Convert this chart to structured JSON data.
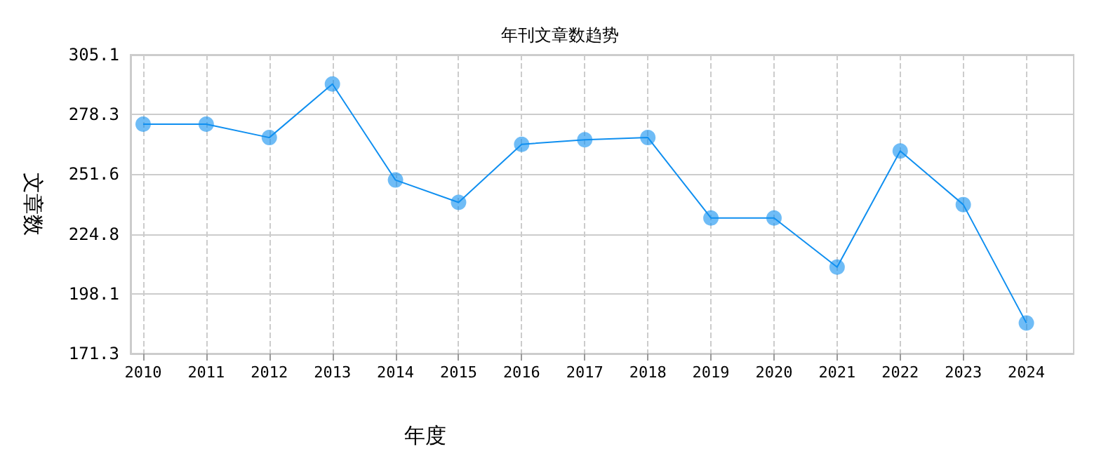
{
  "chart_data": {
    "type": "line",
    "title": "年刊文章数趋势",
    "xlabel": "年度",
    "ylabel": "文章数",
    "x": [
      2010,
      2011,
      2012,
      2013,
      2014,
      2015,
      2016,
      2017,
      2018,
      2019,
      2020,
      2021,
      2022,
      2023,
      2024
    ],
    "series": [
      {
        "color": "#0f8ff0",
        "values": [
          274,
          274,
          268,
          292,
          249,
          239,
          265,
          267,
          268,
          232,
          232,
          210,
          262,
          238,
          185
        ]
      }
    ],
    "xlim": [
      2009.8,
      2024.75
    ],
    "xticks": [
      2010,
      2011,
      2012,
      2013,
      2014,
      2015,
      2016,
      2017,
      2018,
      2019,
      2020,
      2021,
      2022,
      2023,
      2024
    ],
    "ylim": [
      171.3,
      305.1
    ],
    "yticks": [
      171.3,
      198.1,
      224.8,
      251.6,
      278.3,
      305.1
    ],
    "grid": true,
    "marker": "circle"
  }
}
